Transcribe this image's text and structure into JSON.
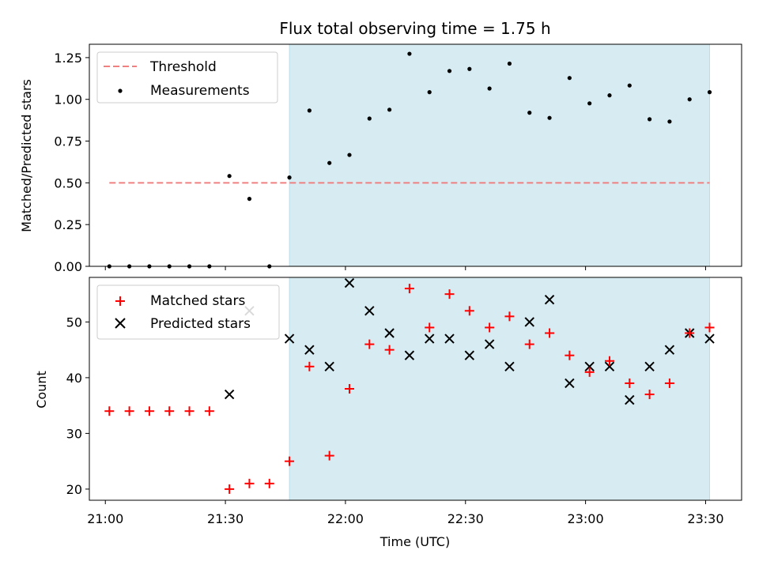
{
  "chart_data": [
    {
      "type": "scatter",
      "title": "Flux total observing time = 1.75 h",
      "ylabel": "Matched/Predicted stars",
      "xlim": [
        "20:56",
        "23:39"
      ],
      "ylim": [
        0,
        1.33
      ],
      "yticks": [
        "0.00",
        "0.25",
        "0.50",
        "0.75",
        "1.00",
        "1.25"
      ],
      "ytick_values": [
        0,
        0.25,
        0.5,
        0.75,
        1.0,
        1.25
      ],
      "shaded_span": [
        "21:46",
        "23:31"
      ],
      "legend_position": "upper left",
      "threshold": {
        "name": "Threshold",
        "value": 0.5,
        "x": [
          "21:01",
          "23:31"
        ],
        "color": "#f08080"
      },
      "series": [
        {
          "name": "Measurements",
          "color": "#000000",
          "x": [
            "21:01",
            "21:06",
            "21:11",
            "21:16",
            "21:21",
            "21:26",
            "21:31",
            "21:36",
            "21:41",
            "21:46",
            "21:51",
            "21:56",
            "22:01",
            "22:06",
            "22:11",
            "22:16",
            "22:21",
            "22:26",
            "22:31",
            "22:36",
            "22:41",
            "22:46",
            "22:51",
            "22:56",
            "23:01",
            "23:06",
            "23:11",
            "23:16",
            "23:21",
            "23:26",
            "23:31"
          ],
          "y": [
            0,
            0,
            0,
            0,
            0,
            0,
            0.541,
            0.404,
            0,
            0.532,
            0.933,
            0.619,
            0.667,
            0.885,
            0.938,
            1.273,
            1.043,
            1.17,
            1.182,
            1.065,
            1.214,
            0.92,
            0.889,
            1.128,
            0.976,
            1.024,
            1.083,
            0.881,
            0.867,
            1.0,
            1.043
          ]
        }
      ]
    },
    {
      "type": "scatter",
      "xlabel": "Time (UTC)",
      "ylabel": "Count",
      "xticks": [
        "21:00",
        "21:30",
        "22:00",
        "22:30",
        "23:00",
        "23:30"
      ],
      "xlim": [
        "20:56",
        "23:39"
      ],
      "ylim": [
        18,
        58
      ],
      "yticks": [
        "20",
        "30",
        "40",
        "50"
      ],
      "ytick_values": [
        20,
        30,
        40,
        50
      ],
      "shaded_span": [
        "21:46",
        "23:31"
      ],
      "legend_position": "upper left",
      "series": [
        {
          "name": "Matched stars",
          "marker": "+",
          "color": "#ff0000",
          "x": [
            "21:01",
            "21:06",
            "21:11",
            "21:16",
            "21:21",
            "21:26",
            "21:31",
            "21:36",
            "21:41",
            "21:46",
            "21:51",
            "21:56",
            "22:01",
            "22:06",
            "22:11",
            "22:16",
            "22:21",
            "22:26",
            "22:31",
            "22:36",
            "22:41",
            "22:46",
            "22:51",
            "22:56",
            "23:01",
            "23:06",
            "23:11",
            "23:16",
            "23:21",
            "23:26",
            "23:31"
          ],
          "y": [
            34,
            34,
            34,
            34,
            34,
            34,
            20,
            21,
            21,
            25,
            42,
            26,
            38,
            46,
            45,
            56,
            49,
            55,
            52,
            49,
            51,
            46,
            48,
            44,
            41,
            43,
            39,
            37,
            39,
            48,
            49
          ]
        },
        {
          "name": "Predicted stars",
          "marker": "x",
          "color": "#000000",
          "x": [
            "21:31",
            "21:36",
            "21:46",
            "21:51",
            "21:56",
            "22:01",
            "22:06",
            "22:11",
            "22:16",
            "22:21",
            "22:26",
            "22:31",
            "22:36",
            "22:41",
            "22:46",
            "22:51",
            "22:56",
            "23:01",
            "23:06",
            "23:11",
            "23:16",
            "23:21",
            "23:26",
            "23:31"
          ],
          "y": [
            37,
            52,
            47,
            45,
            42,
            57,
            52,
            48,
            44,
            47,
            47,
            44,
            46,
            42,
            50,
            54,
            39,
            42,
            42,
            36,
            42,
            45,
            48,
            47
          ]
        }
      ]
    }
  ]
}
